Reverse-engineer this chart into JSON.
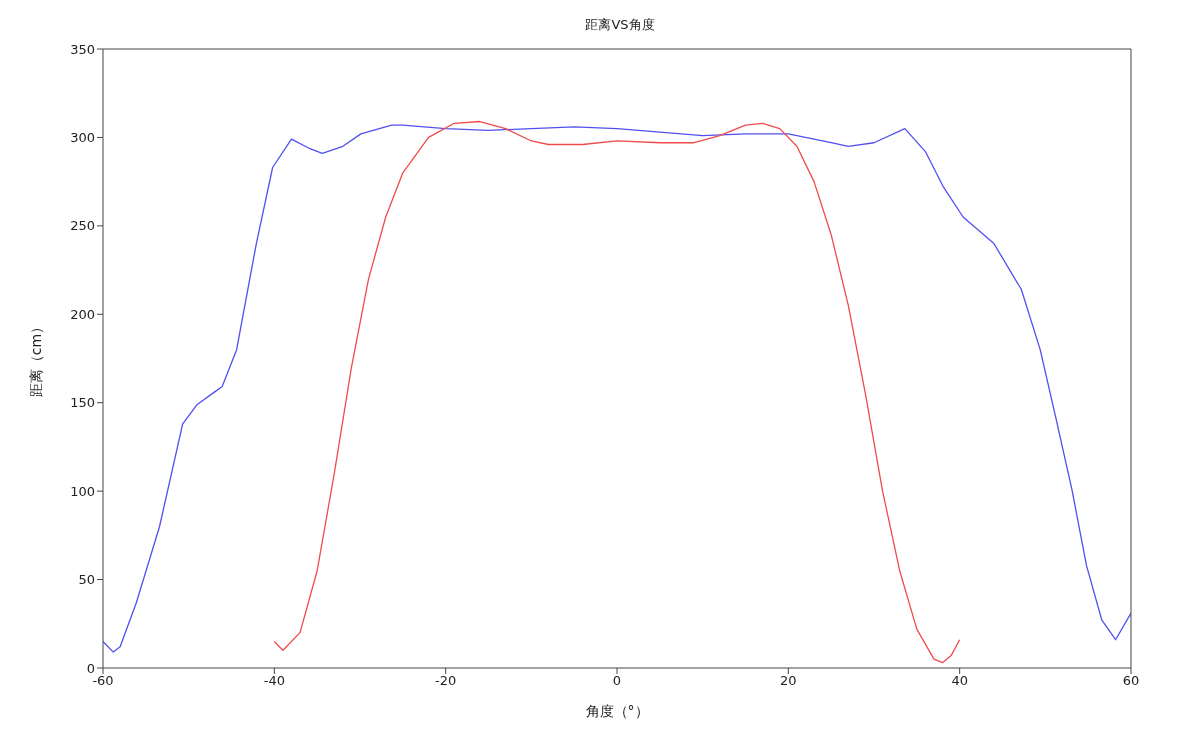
{
  "chart_data": {
    "type": "line",
    "title": "距离VS角度",
    "xlabel": "角度（°）",
    "ylabel": "距离（cm）",
    "xlim": [
      -60,
      60
    ],
    "xticks": [
      -60,
      -40,
      -20,
      0,
      20,
      40,
      60
    ],
    "ylim": [
      0,
      350
    ],
    "yticks": [
      0,
      50,
      100,
      150,
      200,
      250,
      300,
      350
    ],
    "grid": false,
    "legend": false,
    "marker": "none",
    "line_style": "solid",
    "series": [
      {
        "color": "#5050f0",
        "x": [
          -60,
          -58.8,
          -58,
          -56.1,
          -53.4,
          -50.7,
          -49,
          -47,
          -46.1,
          -44.4,
          -42.1,
          -40.2,
          -38,
          -36,
          -34.4,
          -32,
          -29.9,
          -26.3,
          -25,
          -20,
          -15,
          -10,
          -5,
          0,
          5,
          10,
          15,
          20,
          25,
          27,
          30,
          33.6,
          36,
          38.1,
          40.4,
          44,
          47.2,
          49.4,
          51.2,
          53.1,
          54.8,
          56.6,
          58.2,
          60
        ],
        "values": [
          15,
          9,
          12,
          37,
          80,
          138,
          149,
          156,
          159,
          180,
          240,
          283,
          299,
          294,
          291,
          295,
          302,
          307,
          307,
          305,
          304,
          305,
          306,
          305,
          303,
          301,
          302,
          302,
          297,
          295,
          297,
          305,
          292,
          272,
          255,
          240,
          214,
          180,
          142,
          101,
          58,
          27,
          16,
          31
        ]
      },
      {
        "color": "#f04a4a",
        "x": [
          -40,
          -39,
          -37,
          -35,
          -33,
          -31,
          -29,
          -27,
          -25,
          -22,
          -19,
          -16,
          -13,
          -10,
          -8,
          -4,
          0,
          5,
          9,
          12,
          15,
          17,
          19,
          21,
          23,
          25,
          27,
          29,
          31,
          33,
          35,
          37,
          38,
          39,
          40
        ],
        "values": [
          15,
          10,
          20,
          55,
          110,
          170,
          220,
          255,
          280,
          300,
          308,
          309,
          305,
          298,
          296,
          296,
          298,
          297,
          297,
          301,
          307,
          308,
          305,
          295,
          275,
          245,
          205,
          155,
          100,
          55,
          22,
          5,
          3,
          7,
          16
        ]
      }
    ]
  }
}
